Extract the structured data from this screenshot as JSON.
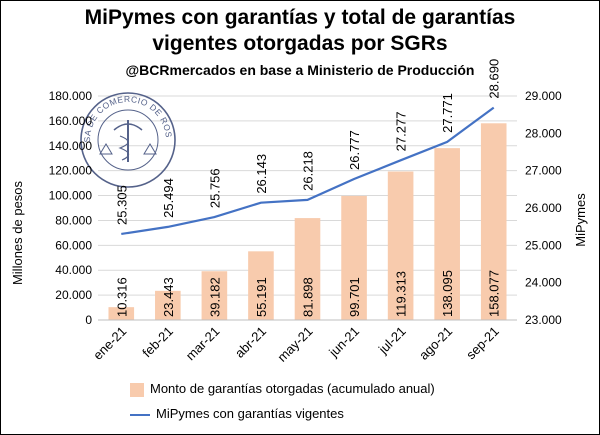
{
  "title_line1": "MiPymes con garantías y total de garantías",
  "title_line2": "vigentes otorgadas por SGRs",
  "subtitle": "@BCRmercados en base a Ministerio de Producción",
  "logo_text": "BOLSA DE COMERCIO DE ROSARIO",
  "chart_data": {
    "type": "bar",
    "categories": [
      "ene-21",
      "feb-21",
      "mar-21",
      "abr-21",
      "may-21",
      "jun-21",
      "jul-21",
      "ago-21",
      "sep-21"
    ],
    "ylabel": "Millones de pesos",
    "y2label": "MiPymes",
    "ylim": [
      0,
      180000
    ],
    "y2lim": [
      23000,
      29000
    ],
    "yticks": [
      "0",
      "20.000",
      "40.000",
      "60.000",
      "80.000",
      "100.000",
      "120.000",
      "140.000",
      "160.000",
      "180.000"
    ],
    "y2ticks": [
      "23.000",
      "24.000",
      "25.000",
      "26.000",
      "27.000",
      "28.000",
      "29.000"
    ],
    "bar_color": "#F8CBAD",
    "line_color": "#4472C4",
    "series": [
      {
        "name": "Monto de garantías otorgadas (acumulado anual)",
        "kind": "bar",
        "axis": "left",
        "values": [
          10316,
          23443,
          39182,
          55191,
          81898,
          99701,
          119313,
          138095,
          158077
        ],
        "labels": [
          "10.316",
          "23.443",
          "39.182",
          "55.191",
          "81.898",
          "99.701",
          "119.313",
          "138.095",
          "158.077"
        ]
      },
      {
        "name": "MiPymes con garantías vigentes",
        "kind": "line",
        "axis": "right",
        "values": [
          25305,
          25494,
          25756,
          26143,
          26218,
          26777,
          27277,
          27771,
          28690
        ],
        "labels": [
          "25.305",
          "25.494",
          "25.756",
          "26.143",
          "26.218",
          "26.777",
          "27.277",
          "27.771",
          "28.690"
        ]
      }
    ],
    "legend_position": "bottom"
  }
}
